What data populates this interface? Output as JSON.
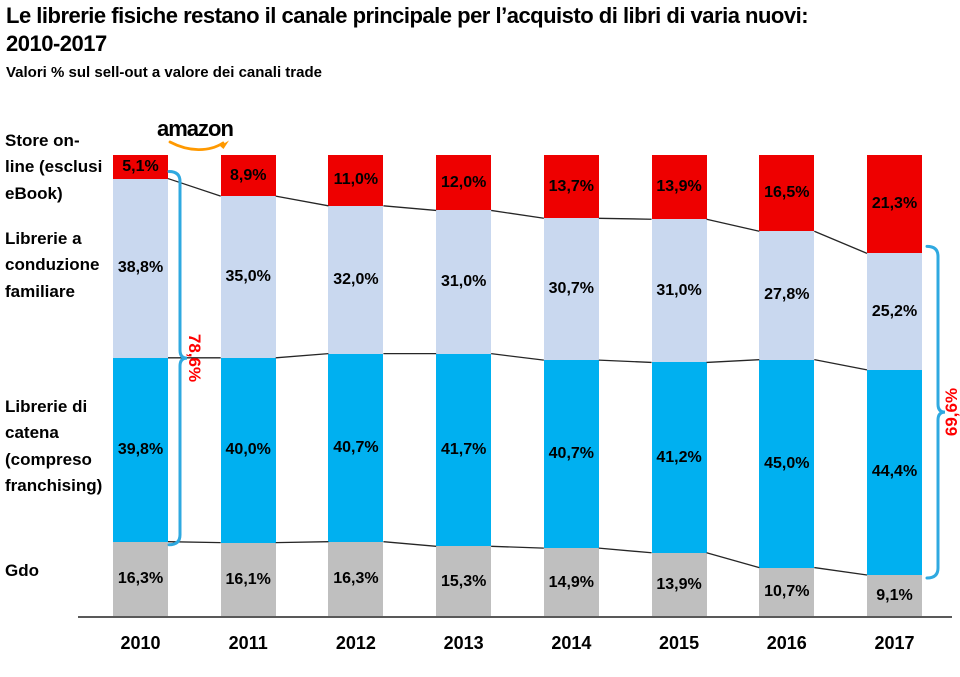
{
  "header": {
    "title_line1": "Le librerie fisiche restano il canale principale per l’acquisto di libri di varia nuovi:",
    "title_line2": "2010-2017",
    "subtitle": "Valori % sul sell-out a valore dei canali trade"
  },
  "amazon_logo": {
    "text": "amazon"
  },
  "side_labels": {
    "items": [
      {
        "label": "Store on-\nline (esclusi\neBook)"
      },
      {
        "label": "Librerie a\nconduzione\nfamiliare"
      },
      {
        "label": "Librerie di\ncatena\n(compreso\nfranchising)"
      },
      {
        "label": "Gdo"
      }
    ]
  },
  "colors": {
    "bracket": "#2FA9E0",
    "connector": "#262626",
    "axis": "#595959",
    "amazon_smile": "#FF9900",
    "annotation_text": "#FF0000"
  },
  "chart_data": {
    "type": "bar",
    "stacked": true,
    "title": "Le librerie fisiche restano il canale principale per l’acquisto di libri di varia nuovi: 2010-2017",
    "subtitle": "Valori % sul sell-out a valore dei canali trade",
    "ylim": [
      0,
      100
    ],
    "grid": false,
    "legend_position": "left-side-labels",
    "categories": [
      "2010",
      "2011",
      "2012",
      "2013",
      "2014",
      "2015",
      "2016",
      "2017"
    ],
    "series": [
      {
        "name": "Store on-line (esclusi eBook)",
        "color": "#EE0000",
        "values": [
          5.1,
          8.9,
          11.0,
          12.0,
          13.7,
          13.9,
          16.5,
          21.3
        ],
        "labels": [
          "5,1%",
          "8,9%",
          "11,0%",
          "12,0%",
          "13,7%",
          "13,9%",
          "16,5%",
          "21,3%"
        ]
      },
      {
        "name": "Librerie a conduzione familiare",
        "color": "#C9D8EF",
        "values": [
          38.8,
          35.0,
          32.0,
          31.0,
          30.7,
          31.0,
          27.8,
          25.2
        ],
        "labels": [
          "38,8%",
          "35,0%",
          "32,0%",
          "31,0%",
          "30,7%",
          "31,0%",
          "27,8%",
          "25,2%"
        ]
      },
      {
        "name": "Librerie di catena (compreso franchising)",
        "color": "#00B0F0",
        "values": [
          39.8,
          40.0,
          40.7,
          41.7,
          40.7,
          41.2,
          45.0,
          44.4
        ],
        "labels": [
          "39,8%",
          "40,0%",
          "40,7%",
          "41,7%",
          "40,7%",
          "41,2%",
          "45,0%",
          "44,4%"
        ]
      },
      {
        "name": "Gdo",
        "color": "#BFBFBF",
        "values": [
          16.3,
          16.1,
          16.3,
          15.3,
          14.9,
          13.9,
          10.7,
          9.1
        ],
        "labels": [
          "16,3%",
          "16,1%",
          "16,3%",
          "15,3%",
          "14,9%",
          "13,9%",
          "10,7%",
          "9,1%"
        ]
      }
    ],
    "annotations": [
      {
        "label": "78,6%",
        "category": "2010",
        "series": [
          "Librerie a conduzione familiare",
          "Librerie di catena (compreso franchising)"
        ],
        "side": "left"
      },
      {
        "label": "69,6%",
        "category": "2017",
        "series": [
          "Librerie a conduzione familiare",
          "Librerie di catena (compreso franchising)"
        ],
        "side": "right"
      }
    ]
  }
}
